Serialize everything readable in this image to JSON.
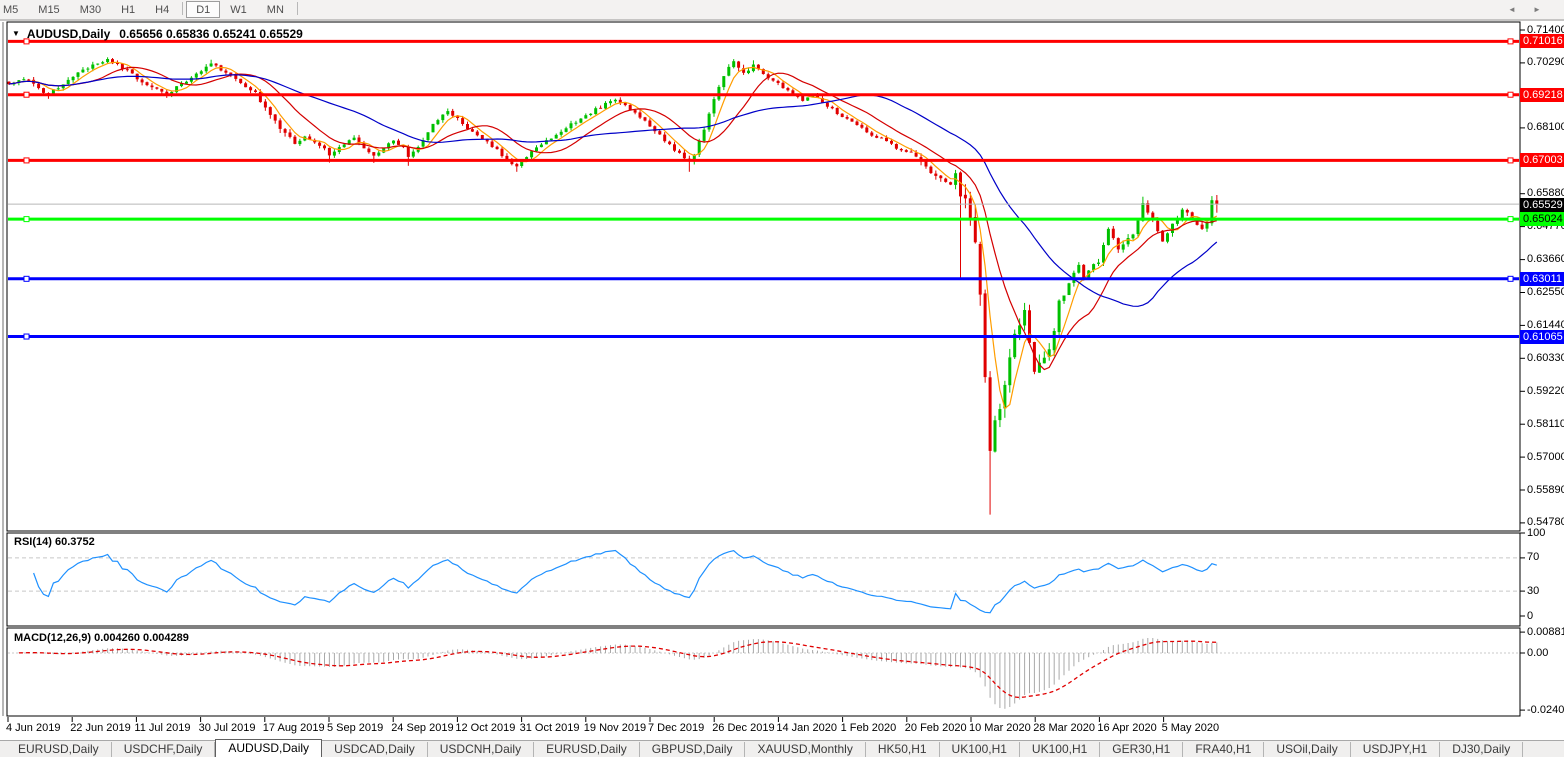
{
  "toolbar": {
    "timeframes": [
      "M5",
      "M15",
      "M30",
      "H1",
      "H4",
      "D1",
      "W1",
      "MN"
    ],
    "active": "D1"
  },
  "chart": {
    "symbol_title": "AUDUSD,Daily",
    "ohlc_text": "0.65656 0.65836 0.65241 0.65529",
    "dropdown_icon": {
      "name": "dropdown-arrow-icon",
      "glyph": "▼"
    }
  },
  "price_axis": {
    "ticks": [
      {
        "label": "0.71400",
        "value": 0.714
      },
      {
        "label": "0.70290",
        "value": 0.7029
      },
      {
        "label": "0.68100",
        "value": 0.681
      },
      {
        "label": "0.65880",
        "value": 0.6588
      },
      {
        "label": "0.64770",
        "value": 0.6477
      },
      {
        "label": "0.63660",
        "value": 0.6366
      },
      {
        "label": "0.62550",
        "value": 0.6255
      },
      {
        "label": "0.61440",
        "value": 0.6144
      },
      {
        "label": "0.60330",
        "value": 0.6033
      },
      {
        "label": "0.59220",
        "value": 0.5922
      },
      {
        "label": "0.58110",
        "value": 0.5811
      },
      {
        "label": "0.57000",
        "value": 0.57
      },
      {
        "label": "0.55890",
        "value": 0.5589
      },
      {
        "label": "0.54780",
        "value": 0.5478
      }
    ]
  },
  "hlines": [
    {
      "price": 0.71016,
      "label": "0.71016",
      "color": "#ff0000",
      "text_color": "#ffffff",
      "right_handle": true
    },
    {
      "price": 0.69218,
      "label": "0.69218",
      "color": "#ff0000",
      "text_color": "#ffffff",
      "right_handle": true
    },
    {
      "price": 0.67003,
      "label": "0.67003",
      "color": "#ff0000",
      "text_color": "#ffffff",
      "right_handle": true
    },
    {
      "price": 0.65024,
      "label": "0.65024",
      "color": "#00ff00",
      "text_color": "#000000",
      "right_handle": true
    },
    {
      "price": 0.63011,
      "label": "0.63011",
      "color": "#0000ff",
      "text_color": "#ffffff",
      "right_handle": true
    },
    {
      "price": 0.61065,
      "label": "0.61065",
      "color": "#0000ff",
      "text_color": "#ffffff",
      "right_handle": false
    }
  ],
  "current_price": {
    "label": "0.65529",
    "value": 0.65529,
    "line_color": "#b8b8b8",
    "box_color": "#000000",
    "text_color": "#ffffff"
  },
  "date_axis": [
    "4 Jun 2019",
    "22 Jun 2019",
    "11 Jul 2019",
    "30 Jul 2019",
    "17 Aug 2019",
    "5 Sep 2019",
    "24 Sep 2019",
    "12 Oct 2019",
    "31 Oct 2019",
    "19 Nov 2019",
    "7 Dec 2019",
    "26 Dec 2019",
    "14 Jan 2020",
    "1 Feb 2020",
    "20 Feb 2020",
    "10 Mar 2020",
    "28 Mar 2020",
    "16 Apr 2020",
    "5 May 2020"
  ],
  "indicators": {
    "rsi": {
      "label": "RSI(14) 60.3752",
      "value": 60.3752,
      "period": 14,
      "scale": [
        {
          "label": "100",
          "value": 100
        },
        {
          "label": "70",
          "value": 70
        },
        {
          "label": "30",
          "value": 30
        },
        {
          "label": "0",
          "value": 0
        }
      ],
      "level_lines": [
        70,
        30
      ]
    },
    "macd": {
      "label": "MACD(12,26,9) 0.004260 0.004289",
      "macd_value": 0.00426,
      "signal_value": 0.004289,
      "fast": 12,
      "slow": 26,
      "signal": 9,
      "scale": [
        {
          "label": "0.008815",
          "value": 0.008815
        },
        {
          "label": "0.00",
          "value": 0
        },
        {
          "label": "-0.024082",
          "value": -0.024082
        }
      ]
    }
  },
  "tabs": {
    "items": [
      "EURUSD,Daily",
      "USDCHF,Daily",
      "AUDUSD,Daily",
      "USDCAD,Daily",
      "USDCNH,Daily",
      "EURUSD,Daily",
      "GBPUSD,Daily",
      "XAUUSD,Monthly",
      "HK50,H1",
      "UK100,H1",
      "UK100,H1",
      "GER30,H1",
      "FRA40,H1",
      "USOil,Daily",
      "USDJPY,H1",
      "DJ30,Daily"
    ],
    "active_index": 2,
    "scroll_left_icon": {
      "name": "scroll-left-icon",
      "glyph": "◄"
    },
    "scroll_right_icon": {
      "name": "scroll-right-icon",
      "glyph": "►"
    }
  },
  "chart_data": {
    "type": "candlestick",
    "symbol": "AUDUSD",
    "timeframe": "Daily",
    "last_ohlc": {
      "open": 0.65656,
      "high": 0.65836,
      "low": 0.65241,
      "close": 0.65529
    },
    "price_range": {
      "top": 0.714,
      "bottom": 0.5478
    },
    "candle_count": 246,
    "close_anchors": [
      [
        0,
        0.6958
      ],
      [
        3,
        0.6978
      ],
      [
        6,
        0.6942
      ],
      [
        8,
        0.692
      ],
      [
        11,
        0.6962
      ],
      [
        14,
        0.6995
      ],
      [
        17,
        0.7018
      ],
      [
        20,
        0.704
      ],
      [
        23,
        0.7012
      ],
      [
        26,
        0.6978
      ],
      [
        29,
        0.6945
      ],
      [
        32,
        0.6922
      ],
      [
        35,
        0.6958
      ],
      [
        38,
        0.6995
      ],
      [
        41,
        0.7028
      ],
      [
        44,
        0.6998
      ],
      [
        47,
        0.6962
      ],
      [
        50,
        0.6925
      ],
      [
        52,
        0.6878
      ],
      [
        54,
        0.6832
      ],
      [
        56,
        0.6788
      ],
      [
        58,
        0.676
      ],
      [
        60,
        0.6782
      ],
      [
        63,
        0.6752
      ],
      [
        65,
        0.6722
      ],
      [
        67,
        0.6748
      ],
      [
        70,
        0.6772
      ],
      [
        72,
        0.6742
      ],
      [
        74,
        0.6718
      ],
      [
        76,
        0.6745
      ],
      [
        78,
        0.6768
      ],
      [
        80,
        0.6742
      ],
      [
        81,
        0.671
      ],
      [
        83,
        0.6742
      ],
      [
        85,
        0.68
      ],
      [
        87,
        0.6838
      ],
      [
        89,
        0.6868
      ],
      [
        91,
        0.684
      ],
      [
        93,
        0.681
      ],
      [
        95,
        0.6788
      ],
      [
        97,
        0.676
      ],
      [
        99,
        0.6735
      ],
      [
        101,
        0.6705
      ],
      [
        103,
        0.6682
      ],
      [
        105,
        0.6715
      ],
      [
        107,
        0.6742
      ],
      [
        109,
        0.6768
      ],
      [
        111,
        0.6788
      ],
      [
        113,
        0.6812
      ],
      [
        115,
        0.6832
      ],
      [
        117,
        0.6852
      ],
      [
        119,
        0.6872
      ],
      [
        121,
        0.689
      ],
      [
        123,
        0.6905
      ],
      [
        125,
        0.6888
      ],
      [
        127,
        0.6862
      ],
      [
        129,
        0.6832
      ],
      [
        131,
        0.6798
      ],
      [
        133,
        0.6768
      ],
      [
        135,
        0.6738
      ],
      [
        137,
        0.6712
      ],
      [
        138,
        0.6692
      ],
      [
        139,
        0.6722
      ],
      [
        140,
        0.676
      ],
      [
        141,
        0.6808
      ],
      [
        142,
        0.6858
      ],
      [
        143,
        0.6905
      ],
      [
        144,
        0.6948
      ],
      [
        145,
        0.6988
      ],
      [
        146,
        0.7012
      ],
      [
        147,
        0.7028
      ],
      [
        148,
        0.7008
      ],
      [
        149,
        0.6992
      ],
      [
        150,
        0.7005
      ],
      [
        151,
        0.7022
      ],
      [
        152,
        0.7012
      ],
      [
        153,
        0.6992
      ],
      [
        155,
        0.6968
      ],
      [
        157,
        0.6945
      ],
      [
        159,
        0.6922
      ],
      [
        161,
        0.6905
      ],
      [
        163,
        0.692
      ],
      [
        165,
        0.6898
      ],
      [
        167,
        0.6872
      ],
      [
        169,
        0.6848
      ],
      [
        171,
        0.6828
      ],
      [
        173,
        0.6808
      ],
      [
        175,
        0.6788
      ],
      [
        177,
        0.6772
      ],
      [
        179,
        0.6752
      ],
      [
        181,
        0.6735
      ],
      [
        183,
        0.6718
      ],
      [
        185,
        0.6692
      ],
      [
        187,
        0.6662
      ],
      [
        189,
        0.6635
      ],
      [
        191,
        0.6612
      ],
      [
        192,
        0.6648
      ],
      [
        193,
        0.6581
      ],
      [
        194,
        0.6548
      ],
      [
        195,
        0.6498
      ],
      [
        196,
        0.6432
      ],
      [
        197,
        0.6248
      ],
      [
        198,
        0.5985
      ],
      [
        199,
        0.5748
      ],
      [
        200,
        0.5818
      ],
      [
        201,
        0.5875
      ],
      [
        202,
        0.5952
      ],
      [
        203,
        0.6042
      ],
      [
        204,
        0.6112
      ],
      [
        205,
        0.6152
      ],
      [
        206,
        0.6185
      ],
      [
        207,
        0.6085
      ],
      [
        208,
        0.5995
      ],
      [
        209,
        0.6008
      ],
      [
        210,
        0.6025
      ],
      [
        211,
        0.6078
      ],
      [
        212,
        0.6132
      ],
      [
        213,
        0.6215
      ],
      [
        214,
        0.6252
      ],
      [
        215,
        0.6285
      ],
      [
        216,
        0.6322
      ],
      [
        217,
        0.6345
      ],
      [
        218,
        0.6305
      ],
      [
        219,
        0.6322
      ],
      [
        220,
        0.6352
      ],
      [
        221,
        0.6358
      ],
      [
        222,
        0.6412
      ],
      [
        223,
        0.6465
      ],
      [
        224,
        0.6432
      ],
      [
        225,
        0.6395
      ],
      [
        226,
        0.6418
      ],
      [
        227,
        0.6432
      ],
      [
        228,
        0.6448
      ],
      [
        229,
        0.6502
      ],
      [
        230,
        0.6552
      ],
      [
        231,
        0.6528
      ],
      [
        232,
        0.6505
      ],
      [
        233,
        0.6465
      ],
      [
        234,
        0.6428
      ],
      [
        235,
        0.6452
      ],
      [
        236,
        0.6482
      ],
      [
        237,
        0.6508
      ],
      [
        238,
        0.6532
      ],
      [
        239,
        0.6518
      ],
      [
        240,
        0.6505
      ],
      [
        241,
        0.6485
      ],
      [
        242,
        0.647
      ],
      [
        243,
        0.6488
      ],
      [
        244,
        0.6565
      ],
      [
        245,
        0.65529
      ]
    ],
    "specials": [
      {
        "i": 8,
        "low": 0.6908
      },
      {
        "i": 20,
        "high": 0.7048
      },
      {
        "i": 41,
        "high": 0.704
      },
      {
        "i": 65,
        "low": 0.6693
      },
      {
        "i": 74,
        "low": 0.6692
      },
      {
        "i": 81,
        "low": 0.6682
      },
      {
        "i": 103,
        "low": 0.6662
      },
      {
        "i": 138,
        "low": 0.6662
      },
      {
        "i": 147,
        "high": 0.7042
      },
      {
        "i": 151,
        "high": 0.7038
      },
      {
        "i": 193,
        "low": 0.6305
      },
      {
        "i": 197,
        "low": 0.621
      },
      {
        "i": 199,
        "low": 0.5506,
        "high": 0.599
      },
      {
        "i": 206,
        "high": 0.622
      },
      {
        "i": 230,
        "high": 0.6578
      },
      {
        "i": 244,
        "open": 0.6488,
        "close": 0.6566,
        "high": 0.658,
        "low": 0.648
      },
      {
        "i": 245,
        "open": 0.65656,
        "close": 0.65529,
        "high": 0.65836,
        "low": 0.65241
      }
    ],
    "vol_regions": [
      [
        0,
        52,
        0.0011
      ],
      [
        52,
        58,
        0.0016
      ],
      [
        58,
        137,
        0.001
      ],
      [
        137,
        152,
        0.0014
      ],
      [
        152,
        183,
        0.0009
      ],
      [
        183,
        193,
        0.0018
      ],
      [
        193,
        203,
        0.005
      ],
      [
        203,
        214,
        0.0032
      ],
      [
        214,
        246,
        0.0015
      ]
    ],
    "moving_averages": [
      {
        "period": 5,
        "color": "#ff9d00"
      },
      {
        "period": 13,
        "color": "#d40000"
      },
      {
        "period": 34,
        "color": "#0000c8"
      }
    ],
    "colors": {
      "bull": "#00c000",
      "bear": "#e00000",
      "rsi": "#1e90ff",
      "rsi_levels": "#c8c8c8",
      "macd_hist": "#a9a9a9",
      "macd_signal": "#e00000",
      "pane_border": "#000000",
      "pane_bg": "#ffffff"
    }
  }
}
